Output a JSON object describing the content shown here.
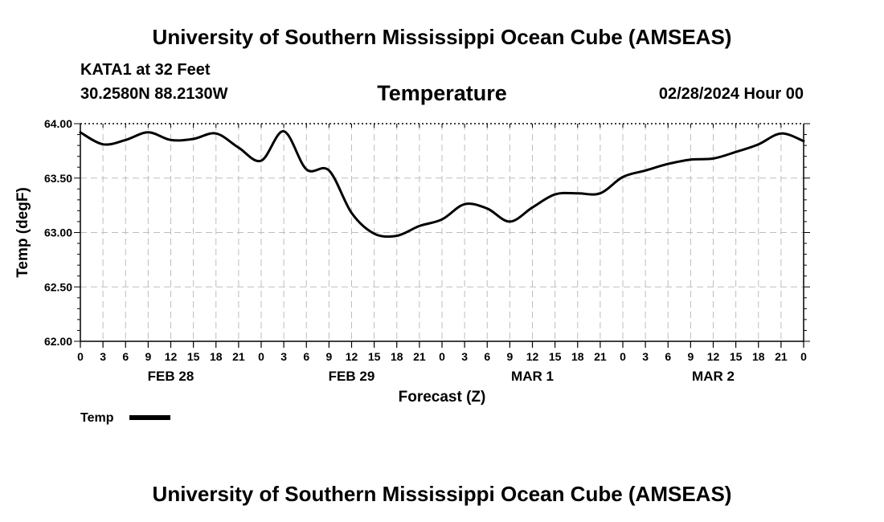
{
  "header": {
    "title": "University of Southern Mississippi Ocean Cube (AMSEAS)",
    "station": "KATA1 at 32 Feet",
    "coords": "30.2580N  88.2130W",
    "run_date": "02/28/2024 Hour 00"
  },
  "footer": {
    "title": "University of Southern Mississippi Ocean Cube (AMSEAS)"
  },
  "colors": {
    "line": "#000000",
    "grid": "#bdbdbd",
    "axis": "#000000"
  },
  "chart_data": {
    "type": "line",
    "title": "Temperature",
    "xlabel": "Forecast (Z)",
    "ylabel": "Temp (degF)",
    "ylim": [
      62.0,
      64.0
    ],
    "xlim_hours": [
      0,
      96
    ],
    "y_ticks": [
      "62.00",
      "62.50",
      "63.00",
      "63.50",
      "64.00"
    ],
    "x_tick_labels": [
      "0",
      "3",
      "6",
      "9",
      "12",
      "15",
      "18",
      "21",
      "0",
      "3",
      "6",
      "9",
      "12",
      "15",
      "18",
      "21",
      "0",
      "3",
      "6",
      "9",
      "12",
      "15",
      "18",
      "21",
      "0",
      "3",
      "6",
      "9",
      "12",
      "15",
      "18",
      "21",
      "0"
    ],
    "day_labels": [
      {
        "label": "FEB 28",
        "hour": 12
      },
      {
        "label": "FEB 29",
        "hour": 36
      },
      {
        "label": "MAR 1",
        "hour": 60
      },
      {
        "label": "MAR 2",
        "hour": 84
      }
    ],
    "grid": true,
    "legend": [
      {
        "name": "Temp",
        "position": "bottom-left"
      }
    ],
    "series": [
      {
        "name": "Temp",
        "x_hours": [
          0,
          3,
          6,
          9,
          12,
          15,
          18,
          21,
          24,
          27,
          30,
          33,
          36,
          39,
          42,
          45,
          48,
          51,
          54,
          57,
          60,
          63,
          66,
          69,
          72,
          75,
          78,
          81,
          84,
          87,
          90,
          93,
          96
        ],
        "values": [
          63.92,
          63.81,
          63.85,
          63.92,
          63.85,
          63.86,
          63.91,
          63.78,
          63.66,
          63.93,
          63.58,
          63.57,
          63.18,
          62.99,
          62.97,
          63.06,
          63.12,
          63.26,
          63.22,
          63.1,
          63.23,
          63.35,
          63.36,
          63.36,
          63.51,
          63.57,
          63.63,
          63.67,
          63.68,
          63.74,
          63.81,
          63.91,
          63.84
        ]
      }
    ]
  }
}
